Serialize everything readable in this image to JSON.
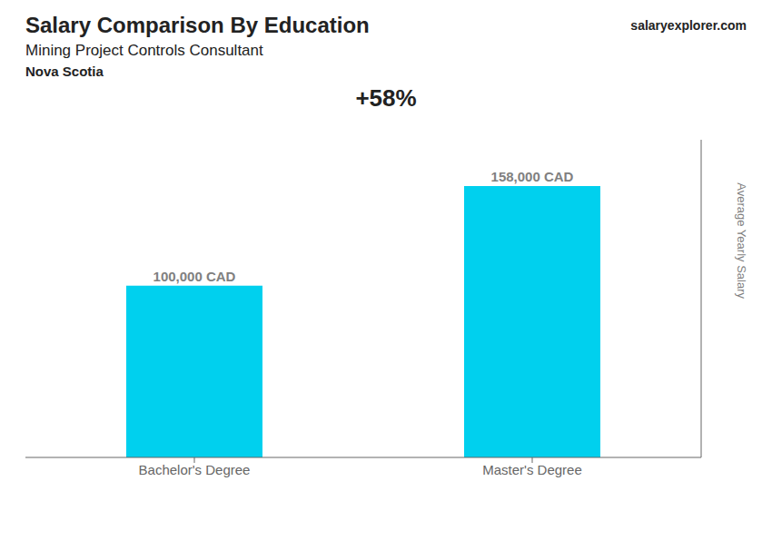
{
  "chart_data": {
    "type": "bar",
    "title": "Salary Comparison By Education",
    "subtitle": "Mining Project Controls Consultant",
    "annotations": [
      "Nova Scotia",
      "salaryexplorer.com",
      "+58%"
    ],
    "y_label": "Average Yearly Salary",
    "categories": [
      "Bachelor's Degree",
      "Master's Degree"
    ],
    "values": [
      100000,
      158000
    ],
    "value_labels": [
      "100,000 CAD",
      "158,000 CAD"
    ],
    "data_labels": true,
    "color": "#00d0ee",
    "ylim": [
      0,
      185000
    ],
    "tick_labels": "x",
    "grid": false
  }
}
